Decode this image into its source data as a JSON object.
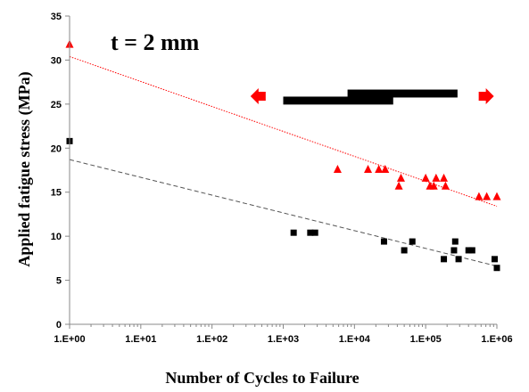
{
  "chart_data": {
    "type": "scatter",
    "title": "",
    "xlabel": "Number of Cycles to Failure",
    "ylabel": "Applied fatigue stress (MPa)",
    "xscale": "log",
    "xlim": [
      1,
      1000000
    ],
    "ylim": [
      0,
      35
    ],
    "grid": false,
    "legend": "none",
    "x_tick_labels": [
      "1.E+00",
      "1.E+01",
      "1.E+02",
      "1.E+03",
      "1.E+04",
      "1.E+05",
      "1.E+06"
    ],
    "x_tick_values": [
      1,
      10,
      100,
      1000,
      10000,
      100000,
      1000000
    ],
    "y_tick_labels": [
      "0",
      "5",
      "10",
      "15",
      "20",
      "25",
      "30",
      "35"
    ],
    "y_tick_values": [
      0,
      5,
      10,
      15,
      20,
      25,
      30,
      35
    ],
    "annotation": "t = 2 mm",
    "series": [
      {
        "marker": "triangle",
        "color": "#ff0000",
        "points": [
          [
            1,
            31.8
          ],
          [
            5800,
            17.6
          ],
          [
            15500,
            17.6
          ],
          [
            22000,
            17.6
          ],
          [
            27000,
            17.6
          ],
          [
            42000,
            15.7
          ],
          [
            45000,
            16.6
          ],
          [
            100000,
            16.6
          ],
          [
            115000,
            15.7
          ],
          [
            130000,
            15.7
          ],
          [
            140000,
            16.6
          ],
          [
            180000,
            16.6
          ],
          [
            190000,
            15.7
          ],
          [
            560000,
            14.5
          ],
          [
            720000,
            14.5
          ],
          [
            1000000,
            14.5
          ]
        ],
        "trendline": {
          "type": "log",
          "x": [
            1,
            1000000
          ],
          "y": [
            30.4,
            13.4
          ],
          "color": "#ff0000",
          "dash": "dotted"
        }
      },
      {
        "marker": "square",
        "color": "#000000",
        "points": [
          [
            1,
            20.8
          ],
          [
            1400,
            10.4
          ],
          [
            2400,
            10.4
          ],
          [
            2800,
            10.4
          ],
          [
            26000,
            9.4
          ],
          [
            50000,
            8.4
          ],
          [
            65000,
            9.4
          ],
          [
            180000,
            7.4
          ],
          [
            250000,
            8.4
          ],
          [
            260000,
            9.4
          ],
          [
            290000,
            7.4
          ],
          [
            400000,
            8.4
          ],
          [
            450000,
            8.4
          ],
          [
            930000,
            7.4
          ],
          [
            1000000,
            6.4
          ]
        ],
        "trendline": {
          "type": "log",
          "x": [
            1,
            1000000
          ],
          "y": [
            18.7,
            6.6
          ],
          "color": "#555555",
          "dash": "dashed"
        }
      }
    ],
    "range_bars": [
      {
        "x_from": 1000,
        "x_to": 35000,
        "y_center": 25.4,
        "y_half": 0.45
      },
      {
        "x_from": 8000,
        "x_to": 280000,
        "y_center": 26.2,
        "y_half": 0.45
      }
    ],
    "range_arrows": [
      {
        "direction": "left",
        "x": 450,
        "y": 25.9,
        "color": "#ff0000"
      },
      {
        "direction": "right",
        "x": 700000,
        "y": 25.9,
        "color": "#ff0000"
      }
    ]
  }
}
